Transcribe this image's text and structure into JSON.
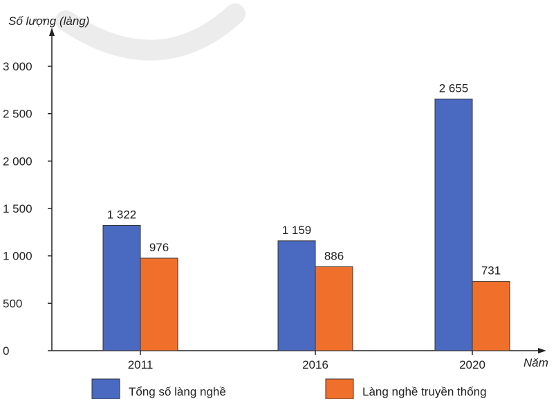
{
  "chart_data": {
    "type": "bar",
    "title": "",
    "ylabel": "Số lượng (làng)",
    "xlabel": "Năm",
    "categories": [
      "2011",
      "2016",
      "2020"
    ],
    "series": [
      {
        "name": "Tổng số làng nghề",
        "values": [
          1322,
          1159,
          2655
        ],
        "labels": [
          "1 322",
          "1 159",
          "2 655"
        ],
        "color": "#4a6ac2"
      },
      {
        "name": "Làng nghề truyền thống",
        "values": [
          976,
          886,
          731
        ],
        "labels": [
          "976",
          "886",
          "731"
        ],
        "color": "#f0702b"
      }
    ],
    "ylim": [
      0,
      3000
    ],
    "yticks": [
      0,
      500,
      1000,
      1500,
      2000,
      2500,
      3000
    ],
    "ytick_labels": [
      "0",
      "500",
      "1 000",
      "1 500",
      "2 000",
      "2 500",
      "3 000"
    ],
    "grid": false,
    "legend": "bottom"
  }
}
